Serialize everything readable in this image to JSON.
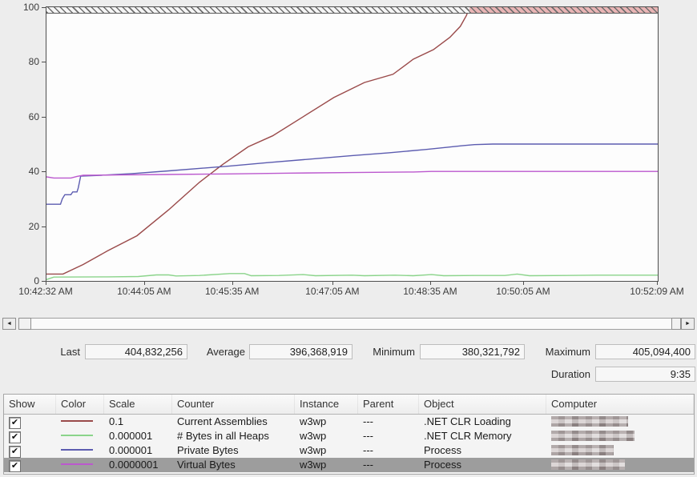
{
  "chart_data": {
    "type": "line",
    "title": "",
    "ylabel": "",
    "xlabel": "",
    "ylim": [
      0,
      100
    ],
    "grid": false,
    "y_ticks": [
      0,
      20,
      40,
      60,
      80,
      100
    ],
    "x_ticks": [
      "10:42:32 AM",
      "10:44:05 AM",
      "10:45:35 AM",
      "10:47:05 AM",
      "10:48:35 AM",
      "10:50:05 AM",
      "10:52:09 AM"
    ],
    "x_tick_positions": [
      0,
      0.161,
      0.305,
      0.469,
      0.629,
      0.781,
      1
    ],
    "clip_band_value": 100,
    "saturation_start": 0.692,
    "series": [
      {
        "name": "Current Assemblies",
        "color": "#9a4a4a",
        "points": [
          [
            0,
            2.5
          ],
          [
            0.027,
            2.5
          ],
          [
            0.06,
            6
          ],
          [
            0.1,
            11
          ],
          [
            0.148,
            16.5
          ],
          [
            0.2,
            26
          ],
          [
            0.25,
            36
          ],
          [
            0.288,
            42.5
          ],
          [
            0.33,
            49
          ],
          [
            0.37,
            53
          ],
          [
            0.42,
            60
          ],
          [
            0.47,
            67
          ],
          [
            0.52,
            72.5
          ],
          [
            0.567,
            75.5
          ],
          [
            0.6,
            81
          ],
          [
            0.633,
            84.5
          ],
          [
            0.66,
            89
          ],
          [
            0.677,
            93
          ],
          [
            0.687,
            97
          ],
          [
            0.692,
            100
          ],
          [
            1,
            100
          ]
        ]
      },
      {
        "name": "# Bytes in all Heaps",
        "color": "#8bd48b",
        "points": [
          [
            0,
            0.5
          ],
          [
            0.012,
            1.4
          ],
          [
            0.1,
            1.5
          ],
          [
            0.15,
            1.6
          ],
          [
            0.18,
            2.2
          ],
          [
            0.2,
            2.2
          ],
          [
            0.212,
            1.8
          ],
          [
            0.25,
            2.0
          ],
          [
            0.3,
            2.7
          ],
          [
            0.324,
            2.7
          ],
          [
            0.335,
            1.9
          ],
          [
            0.38,
            2.0
          ],
          [
            0.42,
            2.3
          ],
          [
            0.44,
            1.9
          ],
          [
            0.5,
            2.1
          ],
          [
            0.52,
            1.9
          ],
          [
            0.57,
            2.1
          ],
          [
            0.6,
            1.9
          ],
          [
            0.63,
            2.3
          ],
          [
            0.65,
            1.9
          ],
          [
            0.7,
            2.0
          ],
          [
            0.75,
            2.0
          ],
          [
            0.77,
            2.5
          ],
          [
            0.79,
            1.9
          ],
          [
            0.85,
            2.0
          ],
          [
            0.9,
            2.1
          ],
          [
            1,
            2.1
          ]
        ]
      },
      {
        "name": "Private Bytes",
        "color": "#5c5cb0",
        "points": [
          [
            0,
            28
          ],
          [
            0.023,
            28
          ],
          [
            0.026,
            30
          ],
          [
            0.03,
            31.5
          ],
          [
            0.04,
            31.5
          ],
          [
            0.043,
            32.5
          ],
          [
            0.05,
            32.5
          ],
          [
            0.052,
            34
          ],
          [
            0.056,
            38.3
          ],
          [
            0.09,
            38.6
          ],
          [
            0.14,
            39.2
          ],
          [
            0.2,
            40.2
          ],
          [
            0.3,
            42
          ],
          [
            0.36,
            43.2
          ],
          [
            0.42,
            44.3
          ],
          [
            0.5,
            45.8
          ],
          [
            0.56,
            46.8
          ],
          [
            0.62,
            48
          ],
          [
            0.655,
            48.8
          ],
          [
            0.68,
            49.4
          ],
          [
            0.7,
            49.8
          ],
          [
            0.73,
            50
          ],
          [
            1,
            50
          ]
        ]
      },
      {
        "name": "Virtual Bytes",
        "color": "#bb58ce",
        "points": [
          [
            0,
            38
          ],
          [
            0.012,
            37.6
          ],
          [
            0.04,
            37.6
          ],
          [
            0.05,
            38.2
          ],
          [
            0.06,
            38.6
          ],
          [
            0.12,
            38.7
          ],
          [
            0.2,
            38.9
          ],
          [
            0.3,
            39.1
          ],
          [
            0.4,
            39.4
          ],
          [
            0.5,
            39.6
          ],
          [
            0.6,
            39.8
          ],
          [
            0.63,
            40
          ],
          [
            1,
            40
          ]
        ]
      }
    ]
  },
  "scrollbar": {
    "left_arrow": "◄",
    "right_arrow": "►"
  },
  "stats": {
    "last_label": "Last",
    "last_value": "404,832,256",
    "average_label": "Average",
    "average_value": "396,368,919",
    "minimum_label": "Minimum",
    "minimum_value": "380,321,792",
    "maximum_label": "Maximum",
    "maximum_value": "405,094,400",
    "duration_label": "Duration",
    "duration_value": "9:35"
  },
  "legend": {
    "columns": [
      "Show",
      "Color",
      "Scale",
      "Counter",
      "Instance",
      "Parent",
      "Object",
      "Computer"
    ],
    "check_glyph": "✔",
    "rows": [
      {
        "show": true,
        "color": "#9a4a4a",
        "scale": "0.1",
        "counter": "Current Assemblies",
        "instance": "w3wp",
        "parent": "---",
        "object": ".NET CLR Loading",
        "computer_redacted": true,
        "computer_blur_width": 96,
        "selected": false
      },
      {
        "show": true,
        "color": "#8bd48b",
        "scale": "0.000001",
        "counter": "# Bytes in all Heaps",
        "instance": "w3wp",
        "parent": "---",
        "object": ".NET CLR Memory",
        "computer_redacted": true,
        "computer_blur_width": 104,
        "selected": false
      },
      {
        "show": true,
        "color": "#5c5cb0",
        "scale": "0.000001",
        "counter": "Private Bytes",
        "instance": "w3wp",
        "parent": "---",
        "object": "Process",
        "computer_redacted": true,
        "computer_blur_width": 78,
        "selected": false
      },
      {
        "show": true,
        "color": "#bb58ce",
        "scale": "0.0000001",
        "counter": "Virtual Bytes",
        "instance": "w3wp",
        "parent": "---",
        "object": "Process",
        "computer_redacted": true,
        "computer_blur_width": 92,
        "selected": true
      }
    ]
  }
}
